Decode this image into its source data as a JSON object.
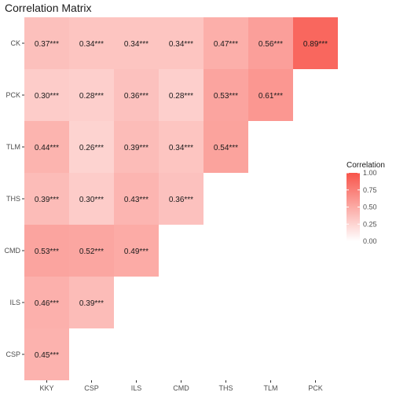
{
  "chart_data": {
    "type": "heatmap",
    "title": "Correlation Matrix",
    "x_categories": [
      "KKY",
      "CSP",
      "ILS",
      "CMD",
      "THS",
      "TLM",
      "PCK"
    ],
    "y_categories": [
      "CK",
      "PCK",
      "TLM",
      "THS",
      "CMD",
      "ILS",
      "CSP"
    ],
    "cells": [
      {
        "x": "KKY",
        "y": "CK",
        "value": 0.37,
        "label": "0.37***"
      },
      {
        "x": "CSP",
        "y": "CK",
        "value": 0.34,
        "label": "0.34***"
      },
      {
        "x": "ILS",
        "y": "CK",
        "value": 0.34,
        "label": "0.34***"
      },
      {
        "x": "CMD",
        "y": "CK",
        "value": 0.34,
        "label": "0.34***"
      },
      {
        "x": "THS",
        "y": "CK",
        "value": 0.47,
        "label": "0.47***"
      },
      {
        "x": "TLM",
        "y": "CK",
        "value": 0.56,
        "label": "0.56***"
      },
      {
        "x": "PCK",
        "y": "CK",
        "value": 0.89,
        "label": "0.89***"
      },
      {
        "x": "KKY",
        "y": "PCK",
        "value": 0.3,
        "label": "0.30***"
      },
      {
        "x": "CSP",
        "y": "PCK",
        "value": 0.28,
        "label": "0.28***"
      },
      {
        "x": "ILS",
        "y": "PCK",
        "value": 0.36,
        "label": "0.36***"
      },
      {
        "x": "CMD",
        "y": "PCK",
        "value": 0.28,
        "label": "0.28***"
      },
      {
        "x": "THS",
        "y": "PCK",
        "value": 0.53,
        "label": "0.53***"
      },
      {
        "x": "TLM",
        "y": "PCK",
        "value": 0.61,
        "label": "0.61***"
      },
      {
        "x": "KKY",
        "y": "TLM",
        "value": 0.44,
        "label": "0.44***"
      },
      {
        "x": "CSP",
        "y": "TLM",
        "value": 0.26,
        "label": "0.26***"
      },
      {
        "x": "ILS",
        "y": "TLM",
        "value": 0.39,
        "label": "0.39***"
      },
      {
        "x": "CMD",
        "y": "TLM",
        "value": 0.34,
        "label": "0.34***"
      },
      {
        "x": "THS",
        "y": "TLM",
        "value": 0.54,
        "label": "0.54***"
      },
      {
        "x": "KKY",
        "y": "THS",
        "value": 0.39,
        "label": "0.39***"
      },
      {
        "x": "CSP",
        "y": "THS",
        "value": 0.3,
        "label": "0.30***"
      },
      {
        "x": "ILS",
        "y": "THS",
        "value": 0.43,
        "label": "0.43***"
      },
      {
        "x": "CMD",
        "y": "THS",
        "value": 0.36,
        "label": "0.36***"
      },
      {
        "x": "KKY",
        "y": "CMD",
        "value": 0.53,
        "label": "0.53***"
      },
      {
        "x": "CSP",
        "y": "CMD",
        "value": 0.52,
        "label": "0.52***"
      },
      {
        "x": "ILS",
        "y": "CMD",
        "value": 0.49,
        "label": "0.49***"
      },
      {
        "x": "KKY",
        "y": "ILS",
        "value": 0.46,
        "label": "0.46***"
      },
      {
        "x": "CSP",
        "y": "ILS",
        "value": 0.39,
        "label": "0.39***"
      },
      {
        "x": "KKY",
        "y": "CSP",
        "value": 0.45,
        "label": "0.45***"
      }
    ],
    "legend": {
      "title": "Correlation",
      "ticks": [
        "0.00",
        "0.25",
        "0.50",
        "0.75",
        "1.00"
      ],
      "range": [
        0,
        1
      ],
      "placement": "right"
    },
    "color_low": "#ffffff",
    "color_high": "#f8544a",
    "grid": false
  }
}
